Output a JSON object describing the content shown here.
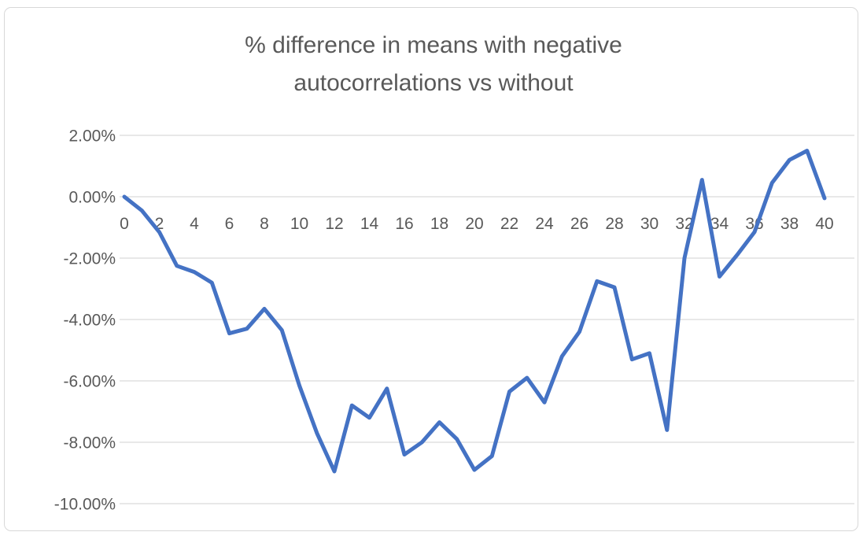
{
  "chart": {
    "colors": {
      "line": "#4472C4",
      "grid": "#D9D9D9",
      "text": "#595959",
      "border": "#D8D8D8",
      "background": "#FFFFFF"
    }
  },
  "chart_data": {
    "type": "line",
    "title": "% difference in means with negative autocorrelations vs without",
    "xlabel": "",
    "ylabel": "",
    "x": [
      0,
      1,
      2,
      3,
      4,
      5,
      6,
      7,
      8,
      9,
      10,
      11,
      12,
      13,
      14,
      15,
      16,
      17,
      18,
      19,
      20,
      21,
      22,
      23,
      24,
      25,
      26,
      27,
      28,
      29,
      30,
      31,
      32,
      33,
      34,
      35,
      36,
      37,
      38,
      39,
      40
    ],
    "values": [
      0.0,
      -0.45,
      -1.15,
      -2.25,
      -2.45,
      -2.8,
      -4.45,
      -4.3,
      -3.65,
      -4.35,
      -6.15,
      -7.7,
      -8.95,
      -6.8,
      -7.2,
      -6.25,
      -8.4,
      -8.0,
      -7.35,
      -7.9,
      -8.9,
      -8.45,
      -6.35,
      -5.9,
      -6.7,
      -5.2,
      -4.4,
      -2.75,
      -2.95,
      -5.3,
      -5.1,
      -7.6,
      -2.0,
      0.55,
      -2.6,
      -1.9,
      -1.15,
      0.45,
      1.2,
      1.5,
      -0.05
    ],
    "units": "percent",
    "ylim": [
      -10,
      2
    ],
    "y_tick_values": [
      2,
      0,
      -2,
      -4,
      -6,
      -8,
      -10
    ],
    "y_tick_labels": [
      "2.00%",
      "0.00%",
      "-2.00%",
      "-4.00%",
      "-6.00%",
      "-8.00%",
      "-10.00%"
    ],
    "x_tick_step": 2,
    "x_tick_labels": [
      "0",
      "2",
      "4",
      "6",
      "8",
      "10",
      "12",
      "14",
      "16",
      "18",
      "20",
      "22",
      "24",
      "26",
      "28",
      "30",
      "32",
      "34",
      "36",
      "38",
      "40"
    ],
    "grid": true,
    "legend": false,
    "line_width": 5
  }
}
